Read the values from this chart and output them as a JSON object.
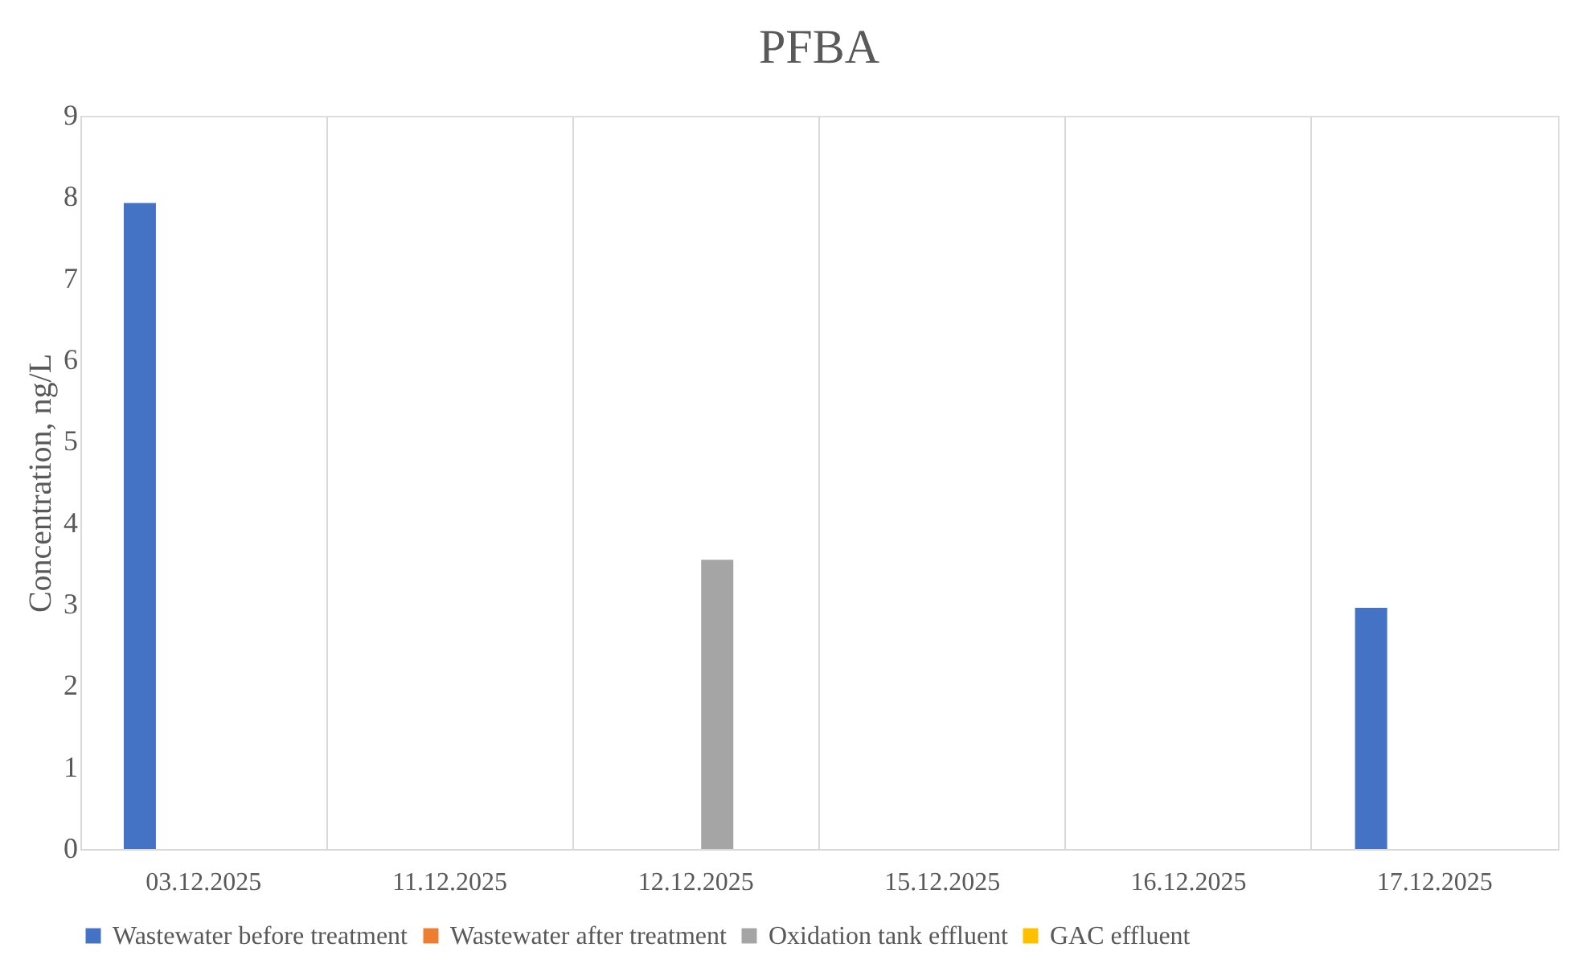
{
  "chart_data": {
    "type": "bar",
    "title": "PFBA",
    "ylabel": "Concentration, ng/L",
    "categories": [
      "03.12.2025",
      "11.12.2025",
      "12.12.2025",
      "15.12.2025",
      "16.12.2025",
      "17.12.2025"
    ],
    "series": [
      {
        "name": "Wastewater before treatment",
        "color": "#4472c4",
        "values": [
          7.93,
          null,
          null,
          null,
          null,
          2.96
        ]
      },
      {
        "name": "Wastewater after treatment",
        "color": "#ed7d31",
        "values": [
          null,
          null,
          null,
          null,
          null,
          null
        ]
      },
      {
        "name": "Oxidation tank effluent",
        "color": "#a5a5a5",
        "values": [
          null,
          null,
          3.55,
          null,
          null,
          null
        ]
      },
      {
        "name": "GAC effluent",
        "color": "#ffc000",
        "values": [
          null,
          null,
          null,
          null,
          null,
          null
        ]
      }
    ],
    "ylim": [
      0,
      9
    ],
    "yticks": [
      0,
      1,
      2,
      3,
      4,
      5,
      6,
      7,
      8,
      9
    ],
    "grid": "x",
    "legend": "bottom"
  }
}
